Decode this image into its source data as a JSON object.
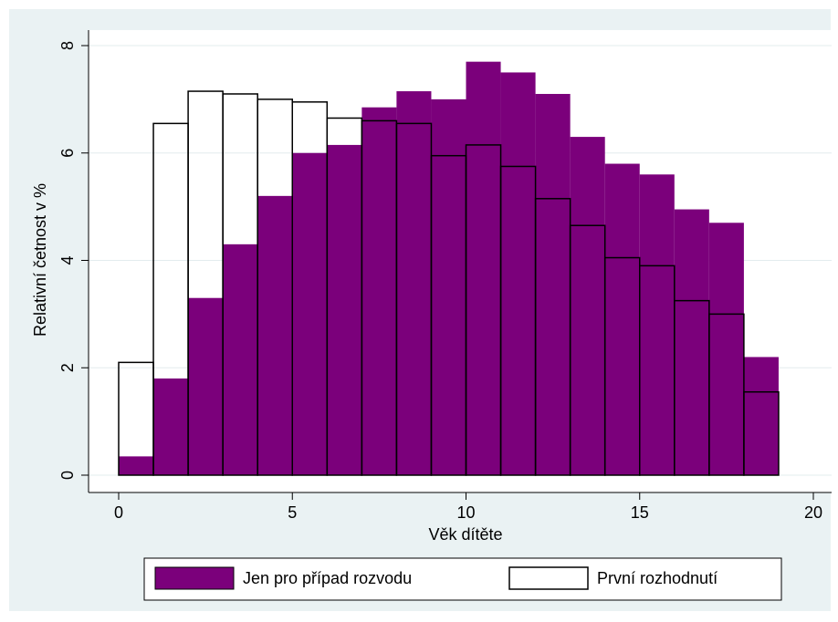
{
  "chart_data": {
    "type": "bar",
    "xlabel": "Věk dítěte",
    "ylabel": "Relativní četnost v %",
    "xlim": [
      0,
      20
    ],
    "ylim": [
      0,
      8
    ],
    "xticks": [
      0,
      5,
      10,
      15,
      20
    ],
    "yticks": [
      0,
      2,
      4,
      6,
      8
    ],
    "grid": true,
    "legend_position": "bottom",
    "bin_width": 1,
    "bins": [
      0,
      1,
      2,
      3,
      4,
      5,
      6,
      7,
      8,
      9,
      10,
      11,
      12,
      13,
      14,
      15,
      16,
      17,
      18
    ],
    "series": [
      {
        "name": "Jen pro případ rozvodu",
        "color": "#7b007b",
        "style": "filled",
        "values": [
          0.35,
          1.8,
          3.3,
          4.3,
          5.2,
          6.0,
          6.15,
          6.85,
          7.15,
          7.0,
          7.7,
          7.5,
          7.1,
          6.3,
          5.8,
          5.6,
          4.95,
          4.7,
          2.2
        ]
      },
      {
        "name": "První rozhodnutí",
        "color": "#000000",
        "style": "outline",
        "values": [
          2.1,
          6.55,
          7.15,
          7.1,
          7.0,
          6.95,
          6.65,
          6.6,
          6.55,
          5.95,
          6.15,
          5.75,
          5.15,
          4.65,
          4.05,
          3.9,
          3.25,
          3.0,
          1.55
        ]
      }
    ]
  }
}
